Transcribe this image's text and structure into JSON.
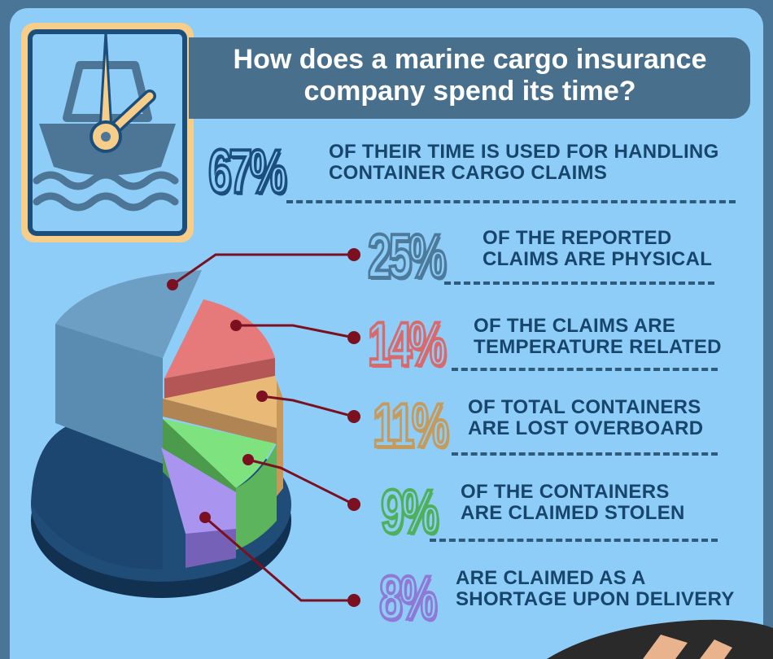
{
  "title": "How does a marine cargo insurance company spend its time?",
  "title_lines": [
    "How does a marine cargo insurance",
    "company spend its time?"
  ],
  "stats": [
    {
      "value": "67%",
      "lines": [
        "OF THEIR TIME IS USED FOR HANDLING",
        "CONTAINER CARGO CLAIMS"
      ],
      "color": "#1b4e7a"
    },
    {
      "value": "25%",
      "lines": [
        "OF THE  REPORTED",
        "CLAIMS ARE PHYSICAL"
      ],
      "color": "#4d7a9a"
    },
    {
      "value": "14%",
      "lines": [
        "OF THE CLAIMS ARE",
        "TEMPERATURE RELATED"
      ],
      "color": "#d9696a"
    },
    {
      "value": "11%",
      "lines": [
        "OF TOTAL CONTAINERS",
        "ARE LOST OVERBOARD"
      ],
      "color": "#c69a5b"
    },
    {
      "value": "9%",
      "lines": [
        "OF THE CONTAINERS",
        "ARE CLAIMED STOLEN"
      ],
      "color": "#4fb05a"
    },
    {
      "value": "8%",
      "lines": [
        "ARE CLAIMED AS A",
        "SHORTAGE UPON DELIVERY"
      ],
      "color": "#8f79d6"
    }
  ],
  "chart_data": {
    "type": "pie",
    "title": "How does a marine cargo insurance company spend its time?",
    "slices": [
      {
        "label": "OF THE REPORTED CLAIMS ARE PHYSICAL",
        "value": 25,
        "color": "#6d9ec4"
      },
      {
        "label": "OF THE CLAIMS ARE TEMPERATURE RELATED",
        "value": 14,
        "color": "#e6797a"
      },
      {
        "label": "OF TOTAL CONTAINERS ARE LOST OVERBOARD",
        "value": 11,
        "color": "#e9b978"
      },
      {
        "label": "OF THE CONTAINERS ARE CLAIMED STOLEN",
        "value": 9,
        "color": "#7ee27e"
      },
      {
        "label": "ARE CLAIMED AS A SHORTAGE UPON DELIVERY",
        "value": 8,
        "color": "#a994f0"
      },
      {
        "label": "OF THEIR TIME IS USED FOR HANDLING CONTAINER CARGO CLAIMS",
        "value": 67,
        "color": "#1f4d78"
      }
    ]
  },
  "colors": {
    "background": "#4a7597",
    "panel": "#8dcdf7",
    "title_bar": "#48708d",
    "leader_line": "#7a1020",
    "icon_frame": "#f7cd8a",
    "icon_fill": "#4d7696"
  },
  "icons": [
    "ship-clock-icon",
    "waves-icon"
  ]
}
